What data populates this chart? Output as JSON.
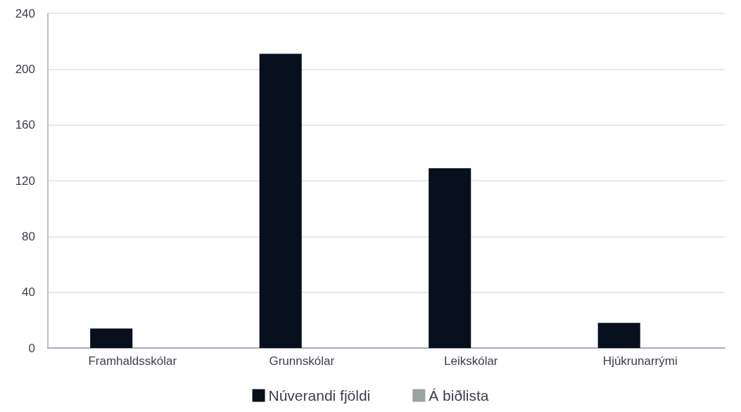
{
  "chart_data": {
    "type": "bar",
    "categories": [
      "Framhaldsskólar",
      "Grunnskólar",
      "Leikskólar",
      "Hjúkrunarrými"
    ],
    "series": [
      {
        "name": "Núverandi fjöldi",
        "color": "#08101e",
        "values": [
          14,
          211,
          129,
          18
        ]
      },
      {
        "name": "Á biðlista",
        "color": "#98a3a0",
        "values": [
          null,
          null,
          null,
          null
        ]
      }
    ],
    "ylim": [
      0,
      240
    ],
    "yticks": [
      0,
      40,
      80,
      120,
      160,
      200,
      240
    ],
    "grid": "y",
    "legend": "bottom"
  }
}
